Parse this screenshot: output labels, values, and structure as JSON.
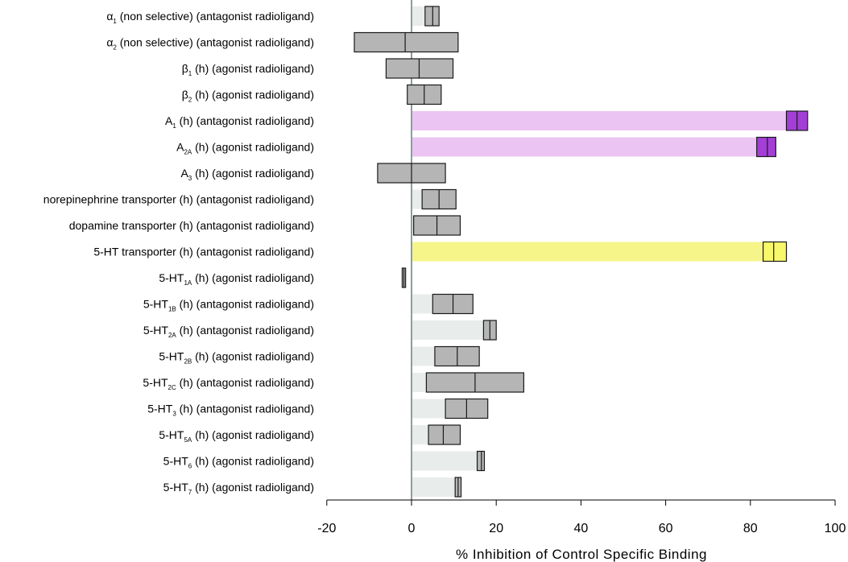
{
  "chart_data": {
    "type": "bar",
    "subtype": "horizontal-floating-range",
    "xlabel": "% Inhibition of Control Specific Binding",
    "xlim": [
      -20,
      100
    ],
    "xticks": [
      "-20",
      "0",
      "20",
      "40",
      "60",
      "80",
      "100"
    ],
    "zero_line": true,
    "colors": {
      "light": "#e8eceb",
      "pink": "#ecc4f3",
      "purple": "#a33fd6",
      "yellow": "#f5f58a",
      "yellow_box": "#f8f86a",
      "box": "#b5b5b5",
      "axis": "#8a9ea0"
    },
    "rows": [
      {
        "label_pre": "α",
        "sub": "1",
        "label_post": " (non selective) (antagonist radioligand)",
        "mean": 5,
        "low": 3.2,
        "high": 6.5,
        "bar": "light",
        "box": "box"
      },
      {
        "label_pre": "α",
        "sub": "2",
        "label_post": " (non selective) (antagonist radioligand)",
        "mean": -1.5,
        "low": -13.5,
        "high": 11,
        "bar": "none",
        "box": "box"
      },
      {
        "label_pre": "β",
        "sub": "1",
        "label_post": " (h) (agonist radioligand)",
        "mean": 1.8,
        "low": -6,
        "high": 9.8,
        "bar": "light",
        "box": "box"
      },
      {
        "label_pre": "β",
        "sub": "2",
        "label_post": " (h) (agonist radioligand)",
        "mean": 3,
        "low": -1,
        "high": 7,
        "bar": "light",
        "box": "box"
      },
      {
        "label_pre": "A",
        "sub": "1",
        "label_post": " (h) (antagonist radioligand)",
        "mean": 91,
        "low": 88.5,
        "high": 93.5,
        "bar": "pink",
        "box": "purple"
      },
      {
        "label_pre": "A",
        "sub": "2A",
        "label_post": " (h) (agonist radioligand)",
        "mean": 84,
        "low": 81.5,
        "high": 86,
        "bar": "pink",
        "box": "purple"
      },
      {
        "label_pre": "A",
        "sub": "3",
        "label_post": " (h) (agonist radioligand)",
        "mean": 0,
        "low": -8,
        "high": 8,
        "bar": "none",
        "box": "box"
      },
      {
        "label_pre": "norepinephrine transporter (h) (antagonist radioligand)",
        "sub": "",
        "label_post": "",
        "mean": 6.5,
        "low": 2.5,
        "high": 10.5,
        "bar": "light",
        "box": "box"
      },
      {
        "label_pre": "dopamine transporter (h) (antagonist radioligand)",
        "sub": "",
        "label_post": "",
        "mean": 6,
        "low": 0.5,
        "high": 11.5,
        "bar": "light",
        "box": "box"
      },
      {
        "label_pre": "5-HT transporter (h) (antagonist radioligand)",
        "sub": "",
        "label_post": "",
        "mean": 85.5,
        "low": 83,
        "high": 88.5,
        "bar": "yellow",
        "box": "yellow_box"
      },
      {
        "label_pre": "5-HT",
        "sub": "1A",
        "label_post": " (h) (agonist radioligand)",
        "mean": -1.8,
        "low": -2.2,
        "high": -1.4,
        "bar": "none",
        "box": "box"
      },
      {
        "label_pre": "5-HT",
        "sub": "1B",
        "label_post": " (h) (antagonist radioligand)",
        "mean": 9.8,
        "low": 5,
        "high": 14.5,
        "bar": "light",
        "box": "box"
      },
      {
        "label_pre": "5-HT",
        "sub": "2A",
        "label_post": " (h) (antagonist radioligand)",
        "mean": 18.5,
        "low": 17,
        "high": 20,
        "bar": "light",
        "box": "box"
      },
      {
        "label_pre": "5-HT",
        "sub": "2B",
        "label_post": " (h) (agonist radioligand)",
        "mean": 10.8,
        "low": 5.5,
        "high": 16,
        "bar": "light",
        "box": "box"
      },
      {
        "label_pre": "5-HT",
        "sub": "2C",
        "label_post": " (h) (antagonist radioligand)",
        "mean": 15,
        "low": 3.5,
        "high": 26.5,
        "bar": "light",
        "box": "box"
      },
      {
        "label_pre": "5-HT",
        "sub": "3",
        "label_post": " (h) (antagonist radioligand)",
        "mean": 13,
        "low": 8,
        "high": 18,
        "bar": "light",
        "box": "box"
      },
      {
        "label_pre": "5-HT",
        "sub": "5A",
        "label_post": " (h) (agonist radioligand)",
        "mean": 7.5,
        "low": 4,
        "high": 11.5,
        "bar": "light",
        "box": "box"
      },
      {
        "label_pre": "5-HT",
        "sub": "6",
        "label_post": " (h) (agonist radioligand)",
        "mean": 16.5,
        "low": 15.5,
        "high": 17.2,
        "bar": "light",
        "box": "box"
      },
      {
        "label_pre": "5-HT",
        "sub": "7",
        "label_post": " (h) (agonist radioligand)",
        "mean": 11,
        "low": 10.3,
        "high": 11.7,
        "bar": "light",
        "box": "box"
      }
    ]
  }
}
